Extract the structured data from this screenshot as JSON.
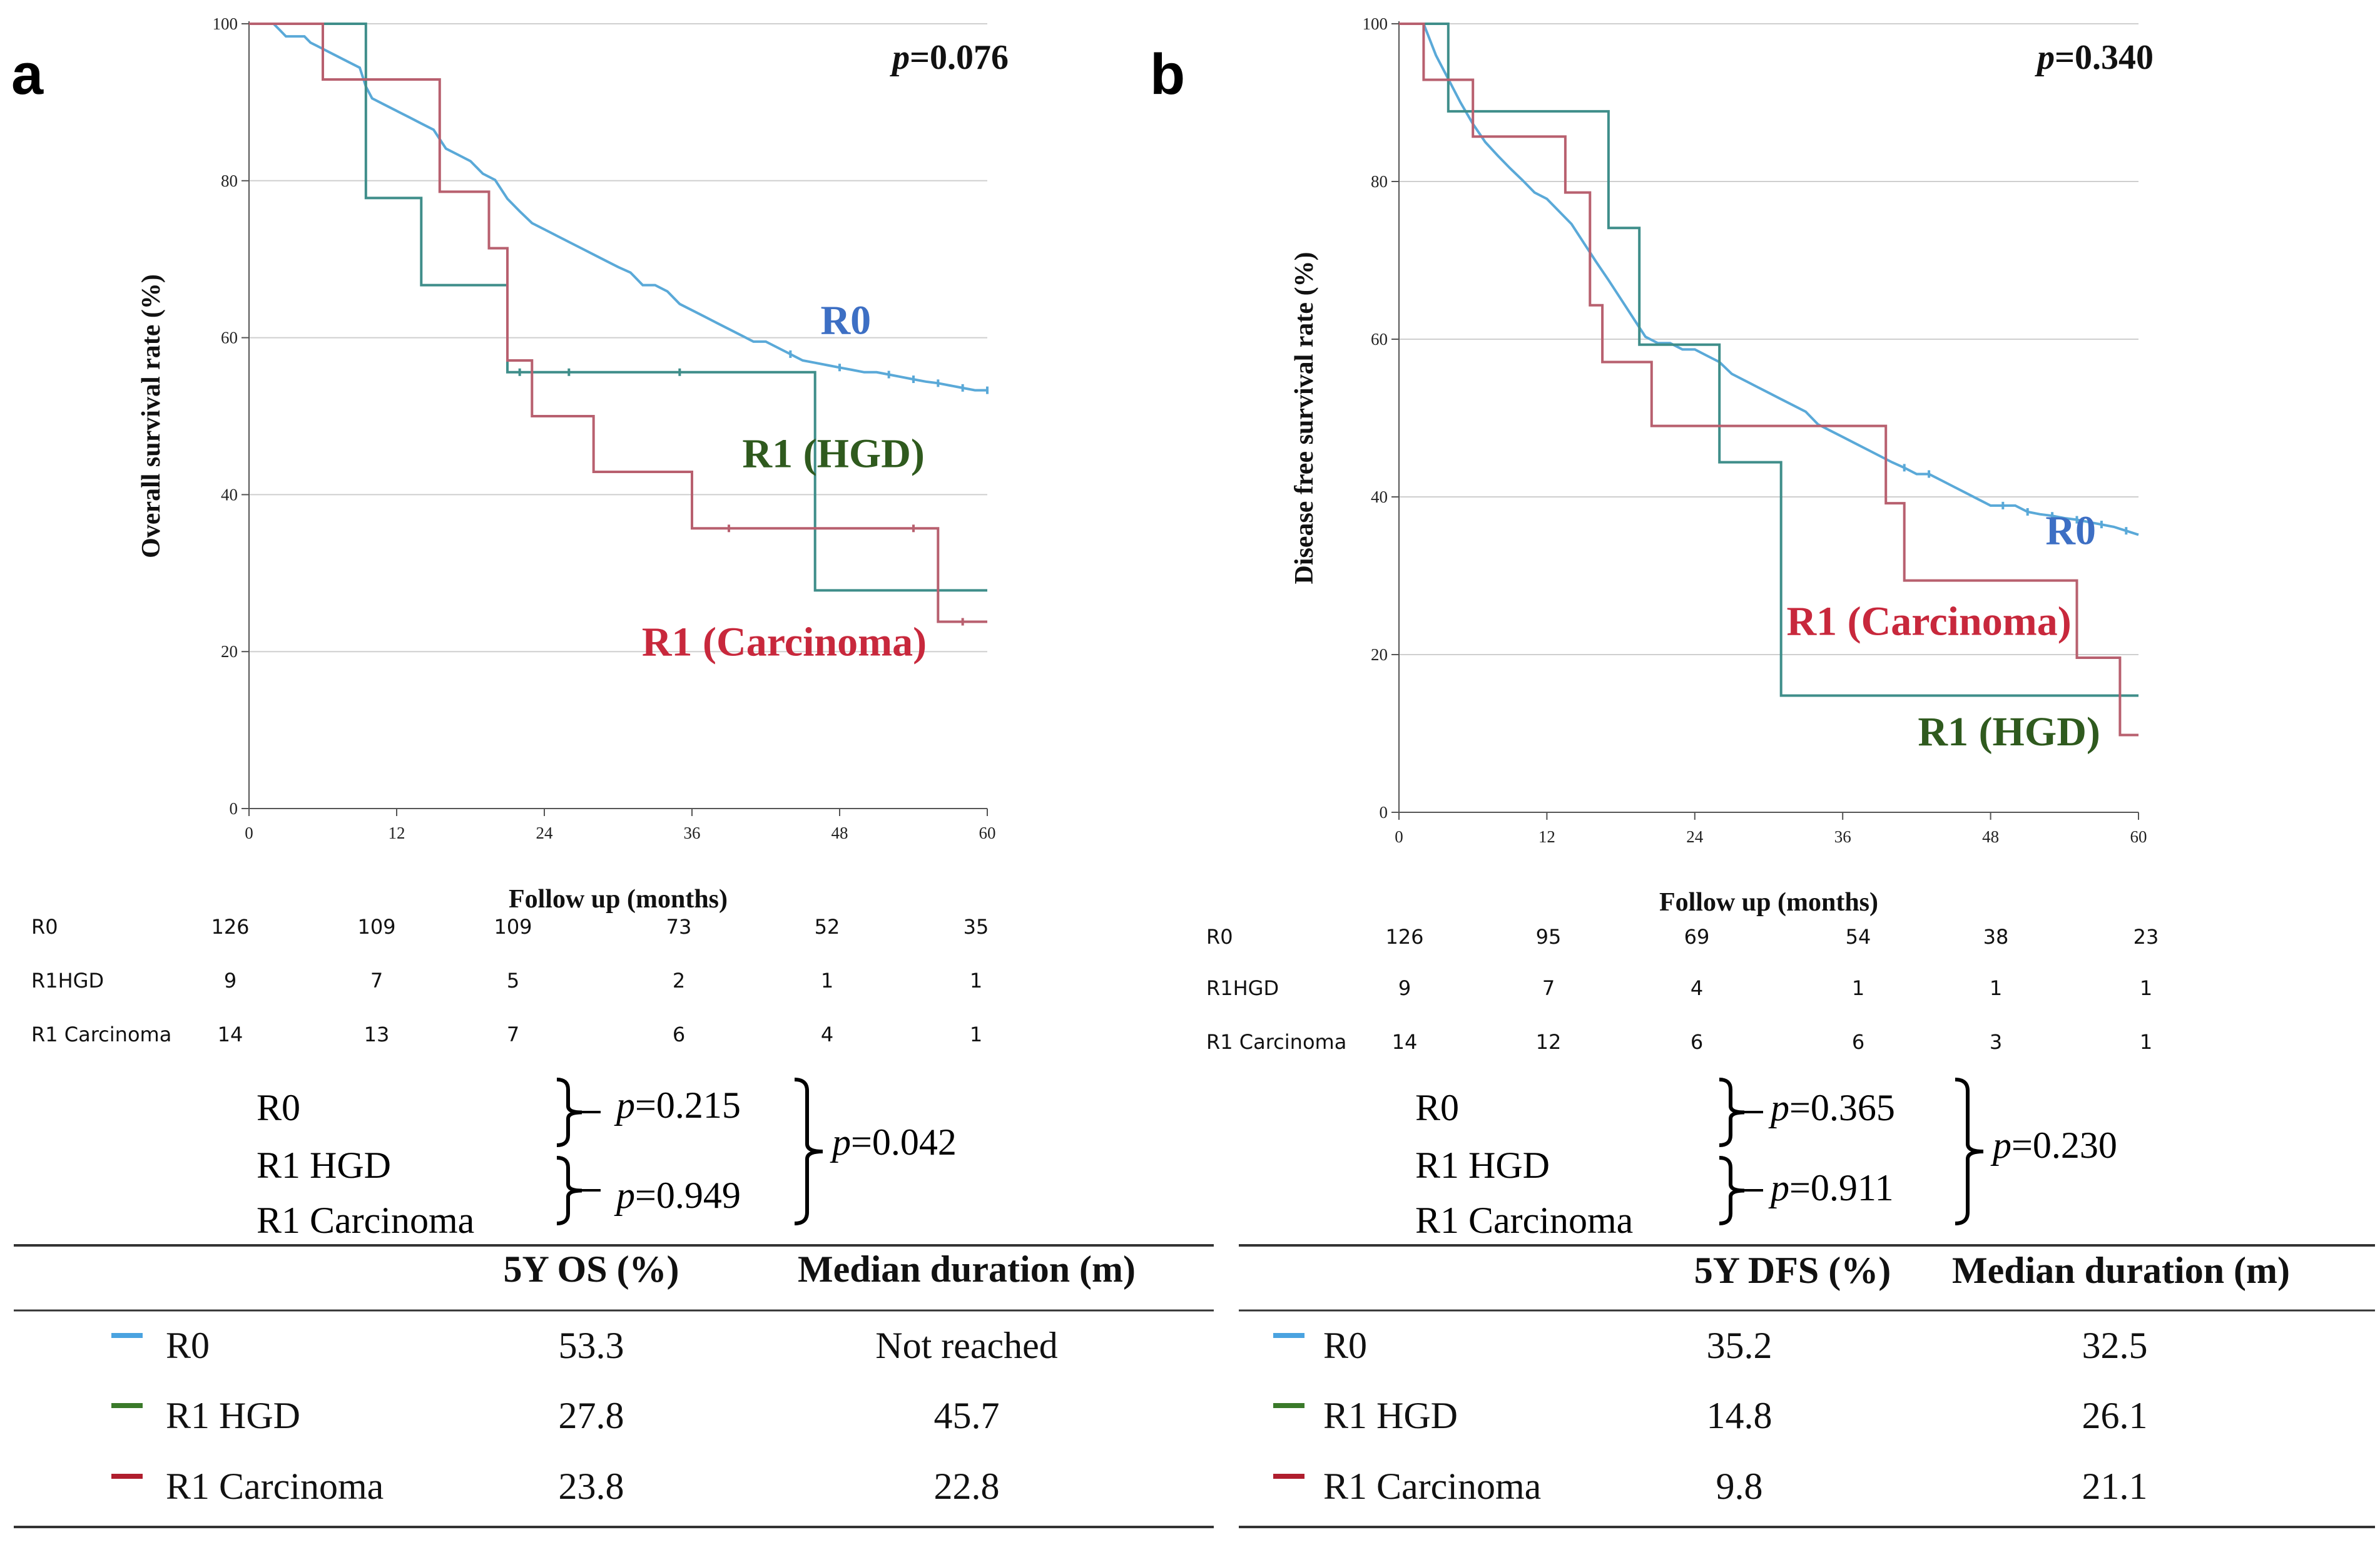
{
  "chart_data": [
    {
      "panel": "a",
      "type": "line",
      "subtype": "kaplan-meier",
      "ylabel": "Overall survival rate (%)",
      "xlabel": "Follow up (months)",
      "x_ticks": [
        "0",
        "12",
        "24",
        "36",
        "48",
        "60"
      ],
      "y_ticks": [
        "0",
        "20",
        "40",
        "60",
        "80",
        "100"
      ],
      "xlim": [
        0,
        60
      ],
      "ylim": [
        0,
        100
      ],
      "pvalue": {
        "symbol": "p",
        "text": "=0.076"
      },
      "series": [
        {
          "name": "R0",
          "label": "R0",
          "color": "#5aa9d8",
          "label_color": "#3d6fc4",
          "points": [
            [
              0,
              100
            ],
            [
              2,
              100
            ],
            [
              2.5,
              99.2
            ],
            [
              3,
              98.4
            ],
            [
              4.5,
              98.4
            ],
            [
              5,
              97.6
            ],
            [
              6,
              96.8
            ],
            [
              7,
              96
            ],
            [
              8,
              95.2
            ],
            [
              9,
              94.4
            ],
            [
              9.5,
              92
            ],
            [
              10,
              90.5
            ],
            [
              11,
              89.7
            ],
            [
              12,
              88.9
            ],
            [
              13,
              88.1
            ],
            [
              14,
              87.3
            ],
            [
              15,
              86.5
            ],
            [
              16,
              84.1
            ],
            [
              17,
              83.3
            ],
            [
              18,
              82.5
            ],
            [
              19,
              80.9
            ],
            [
              20,
              80.1
            ],
            [
              21,
              77.7
            ],
            [
              22,
              76.1
            ],
            [
              23,
              74.6
            ],
            [
              24,
              73.8
            ],
            [
              25,
              73
            ],
            [
              26,
              72.2
            ],
            [
              27,
              71.4
            ],
            [
              28,
              70.6
            ],
            [
              29,
              69.8
            ],
            [
              30,
              69
            ],
            [
              31,
              68.3
            ],
            [
              32,
              66.7
            ],
            [
              33,
              66.7
            ],
            [
              34,
              65.9
            ],
            [
              35,
              64.3
            ],
            [
              36,
              63.5
            ],
            [
              37,
              62.7
            ],
            [
              38,
              61.9
            ],
            [
              39,
              61.1
            ],
            [
              40,
              60.3
            ],
            [
              41,
              59.5
            ],
            [
              42,
              59.5
            ],
            [
              43,
              58.7
            ],
            [
              44,
              57.9
            ],
            [
              45,
              57.1
            ],
            [
              46,
              56.8
            ],
            [
              47,
              56.5
            ],
            [
              48,
              56.2
            ],
            [
              49,
              55.9
            ],
            [
              50,
              55.6
            ],
            [
              51,
              55.6
            ],
            [
              52,
              55.3
            ],
            [
              53,
              55
            ],
            [
              54,
              54.7
            ],
            [
              55,
              54.4
            ],
            [
              56,
              54.2
            ],
            [
              57,
              53.9
            ],
            [
              58,
              53.6
            ],
            [
              59,
              53.3
            ],
            [
              60,
              53.3
            ]
          ],
          "censor": [
            [
              44,
              57.9
            ],
            [
              48,
              56.2
            ],
            [
              52,
              55.3
            ],
            [
              54,
              54.7
            ],
            [
              56,
              54.2
            ],
            [
              58,
              53.6
            ],
            [
              60,
              53.3
            ]
          ],
          "label_pos": [
            48.5,
            60.5
          ]
        },
        {
          "name": "R1 (HGD)",
          "label": "R1 (HGD)",
          "color": "#3f8e8a",
          "label_color": "#2f5a1e",
          "points": [
            [
              0,
              100
            ],
            [
              9.5,
              100
            ],
            [
              9.5,
              77.8
            ],
            [
              14,
              77.8
            ],
            [
              14,
              66.7
            ],
            [
              21,
              66.7
            ],
            [
              21,
              55.6
            ],
            [
              46,
              55.6
            ],
            [
              46,
              27.8
            ],
            [
              60,
              27.8
            ]
          ],
          "censor": [
            [
              22,
              55.6
            ],
            [
              26,
              55.6
            ],
            [
              35,
              55.6
            ]
          ],
          "label_pos": [
            47.5,
            43.5
          ]
        },
        {
          "name": "R1 (Carcinoma)",
          "label": "R1 (Carcinoma)",
          "color": "#b8606f",
          "label_color": "#c8283c",
          "points": [
            [
              0,
              100
            ],
            [
              6,
              100
            ],
            [
              6,
              92.9
            ],
            [
              15.5,
              92.9
            ],
            [
              15.5,
              78.6
            ],
            [
              19.5,
              78.6
            ],
            [
              19.5,
              71.4
            ],
            [
              21,
              71.4
            ],
            [
              21,
              57.1
            ],
            [
              23,
              57.1
            ],
            [
              23,
              50
            ],
            [
              28,
              50
            ],
            [
              28,
              42.9
            ],
            [
              36,
              42.9
            ],
            [
              36,
              35.7
            ],
            [
              56,
              35.7
            ],
            [
              56,
              23.8
            ],
            [
              60,
              23.8
            ]
          ],
          "censor": [
            [
              39,
              35.7
            ],
            [
              54,
              35.7
            ],
            [
              58,
              23.8
            ]
          ],
          "label_pos": [
            43.5,
            19.5
          ]
        }
      ],
      "risk_table": {
        "columns": [
          "126",
          "109",
          "109",
          "73",
          "52",
          "35"
        ],
        "rows": [
          {
            "label": "R0",
            "values": [
              "126",
              "109",
              "109",
              "73",
              "52",
              "35"
            ]
          },
          {
            "label": "R1HGD",
            "values": [
              "9",
              "7",
              "5",
              "2",
              "1",
              "1"
            ]
          },
          {
            "label": "R1 Carcinoma",
            "values": [
              "14",
              "13",
              "7",
              "6",
              "4",
              "1"
            ]
          }
        ]
      },
      "comparisons": {
        "groups": [
          "R0",
          "R1 HGD",
          "R1 Carcinoma"
        ],
        "p_r0_hgd": "=0.215",
        "p_hgd_carc": "=0.949",
        "p_overall": "=0.042"
      },
      "summary_table": {
        "headers": [
          "5Y OS (%)",
          "Median duration (m)"
        ],
        "rows": [
          {
            "group": "R0",
            "color": "#4aa3e0",
            "value": "53.3",
            "median": "Not reached"
          },
          {
            "group": "R1 HGD",
            "color": "#3a7a2a",
            "value": "27.8",
            "median": "45.7"
          },
          {
            "group": "R1 Carcinoma",
            "color": "#b01e2e",
            "value": "23.8",
            "median": "22.8"
          }
        ]
      }
    },
    {
      "panel": "b",
      "type": "line",
      "subtype": "kaplan-meier",
      "ylabel": "Disease free survival rate (%)",
      "xlabel": "Follow up (months)",
      "x_ticks": [
        "0",
        "12",
        "24",
        "36",
        "48",
        "60"
      ],
      "y_ticks": [
        "0",
        "20",
        "40",
        "60",
        "80",
        "100"
      ],
      "xlim": [
        0,
        60
      ],
      "ylim": [
        0,
        100
      ],
      "pvalue": {
        "symbol": "p",
        "text": "=0.340"
      },
      "series": [
        {
          "name": "R0",
          "label": "R0",
          "color": "#5aa9d8",
          "label_color": "#3d6fc4",
          "points": [
            [
              0,
              100
            ],
            [
              2,
              100
            ],
            [
              3,
              96
            ],
            [
              4,
              93
            ],
            [
              5,
              90
            ],
            [
              6,
              87.3
            ],
            [
              7,
              85
            ],
            [
              8,
              83.3
            ],
            [
              9,
              81.7
            ],
            [
              10,
              80.2
            ],
            [
              11,
              78.6
            ],
            [
              12,
              77.8
            ],
            [
              13,
              76.2
            ],
            [
              14,
              74.6
            ],
            [
              15,
              72.2
            ],
            [
              16,
              69.8
            ],
            [
              17,
              67.5
            ],
            [
              18,
              65.1
            ],
            [
              19,
              62.7
            ],
            [
              20,
              60.3
            ],
            [
              21,
              59.5
            ],
            [
              22,
              59.5
            ],
            [
              23,
              58.7
            ],
            [
              24,
              58.7
            ],
            [
              25,
              57.9
            ],
            [
              26,
              57.1
            ],
            [
              27,
              55.6
            ],
            [
              28,
              54.8
            ],
            [
              29,
              54
            ],
            [
              30,
              53.2
            ],
            [
              31,
              52.4
            ],
            [
              32,
              51.6
            ],
            [
              33,
              50.8
            ],
            [
              34,
              49.2
            ],
            [
              35,
              48.4
            ],
            [
              36,
              47.6
            ],
            [
              37,
              46.8
            ],
            [
              38,
              46
            ],
            [
              39,
              45.2
            ],
            [
              40,
              44.4
            ],
            [
              41,
              43.7
            ],
            [
              42,
              42.9
            ],
            [
              43,
              42.9
            ],
            [
              44,
              42.1
            ],
            [
              45,
              41.3
            ],
            [
              46,
              40.5
            ],
            [
              47,
              39.7
            ],
            [
              48,
              38.9
            ],
            [
              49,
              38.9
            ],
            [
              50,
              38.9
            ],
            [
              51,
              38.1
            ],
            [
              52,
              37.8
            ],
            [
              53,
              37.6
            ],
            [
              54,
              37.3
            ],
            [
              55,
              37.1
            ],
            [
              56,
              36.8
            ],
            [
              57,
              36.5
            ],
            [
              58,
              36.2
            ],
            [
              59,
              35.7
            ],
            [
              60,
              35.2
            ]
          ],
          "censor": [
            [
              41,
              43.7
            ],
            [
              43,
              42.9
            ],
            [
              49,
              38.9
            ],
            [
              51,
              38.1
            ],
            [
              53,
              37.6
            ],
            [
              55,
              37.1
            ],
            [
              57,
              36.5
            ],
            [
              59,
              35.7
            ]
          ],
          "label_pos": [
            54.5,
            34
          ]
        },
        {
          "name": "R1 (HGD)",
          "label": "R1 (HGD)",
          "color": "#3f8e8a",
          "label_color": "#2f5a1e",
          "points": [
            [
              0,
              100
            ],
            [
              4,
              100
            ],
            [
              4,
              88.9
            ],
            [
              17,
              88.9
            ],
            [
              17,
              74.1
            ],
            [
              19.5,
              74.1
            ],
            [
              19.5,
              59.3
            ],
            [
              26,
              59.3
            ],
            [
              26,
              44.4
            ],
            [
              31,
              44.4
            ],
            [
              31,
              29.6
            ],
            [
              31,
              29.6
            ],
            [
              31,
              14.8
            ],
            [
              60,
              14.8
            ]
          ],
          "censor": [],
          "label_pos": [
            49.5,
            8.5
          ]
        },
        {
          "name": "R1 (Carcinoma)",
          "label": "R1 (Carcinoma)",
          "color": "#b8606f",
          "label_color": "#c8283c",
          "points": [
            [
              0,
              100
            ],
            [
              2,
              100
            ],
            [
              2,
              92.9
            ],
            [
              6,
              92.9
            ],
            [
              6,
              85.7
            ],
            [
              13.5,
              85.7
            ],
            [
              13.5,
              78.6
            ],
            [
              15.5,
              78.6
            ],
            [
              15.5,
              64.3
            ],
            [
              16.5,
              64.3
            ],
            [
              16.5,
              57.1
            ],
            [
              20.5,
              57.1
            ],
            [
              20.5,
              49
            ],
            [
              39.5,
              49
            ],
            [
              39.5,
              39.2
            ],
            [
              41,
              39.2
            ],
            [
              41,
              29.4
            ],
            [
              55,
              29.4
            ],
            [
              55,
              19.6
            ],
            [
              58.5,
              19.6
            ],
            [
              58.5,
              9.8
            ],
            [
              60,
              9.8
            ]
          ],
          "censor": [],
          "label_pos": [
            43,
            22.5
          ]
        }
      ],
      "risk_table": {
        "columns": [
          "126",
          "95",
          "69",
          "54",
          "38",
          "23"
        ],
        "rows": [
          {
            "label": "R0",
            "values": [
              "126",
              "95",
              "69",
              "54",
              "38",
              "23"
            ]
          },
          {
            "label": "R1HGD",
            "values": [
              "9",
              "7",
              "4",
              "1",
              "1",
              "1"
            ]
          },
          {
            "label": "R1 Carcinoma",
            "values": [
              "14",
              "12",
              "6",
              "6",
              "3",
              "1"
            ]
          }
        ]
      },
      "comparisons": {
        "groups": [
          "R0",
          "R1 HGD",
          "R1 Carcinoma"
        ],
        "p_r0_hgd": "=0.365",
        "p_hgd_carc": "=0.911",
        "p_overall": "=0.230"
      },
      "summary_table": {
        "headers": [
          "5Y DFS (%)",
          "Median duration (m)"
        ],
        "rows": [
          {
            "group": "R0",
            "color": "#4aa3e0",
            "value": "35.2",
            "median": "32.5"
          },
          {
            "group": "R1 HGD",
            "color": "#3a7a2a",
            "value": "14.8",
            "median": "26.1"
          },
          {
            "group": "R1 Carcinoma",
            "color": "#b01e2e",
            "value": "9.8",
            "median": "21.1"
          }
        ]
      }
    }
  ]
}
